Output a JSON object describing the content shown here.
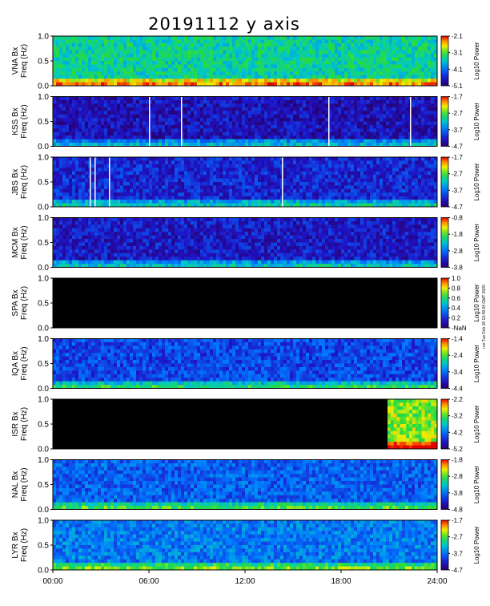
{
  "title": "20191112 y axis",
  "side_note": "run Tue Feb 18 13:49:34 GMT 2020",
  "chart_data": {
    "type": "heatmap",
    "title": "20191112 y axis",
    "xlabel": "",
    "x_range_hours": [
      0,
      24
    ],
    "x_ticks": [
      "00:00",
      "06:00",
      "12:00",
      "18:00",
      "24:00"
    ],
    "ylim": [
      0.0,
      1.0
    ],
    "y_ticks": [
      "0.0",
      "0.5",
      "1.0"
    ],
    "colorbar_label": "Log10 Power",
    "panels": [
      {
        "station": "VNA Bx",
        "ylabel": "Freq (Hz)",
        "ylabel1": "VNA Bx",
        "cb_ticks": [
          "-2.1",
          "-3.1",
          "-4.1",
          "-5.1"
        ],
        "cb_range": [
          -5.1,
          -2.1
        ],
        "data_coverage_hours": [
          0,
          24
        ],
        "level": 0.55,
        "gaps_hours": []
      },
      {
        "station": "KSS Bx",
        "ylabel": "Freq (Hz)",
        "ylabel1": "KSS Bx",
        "cb_ticks": [
          "-1.7",
          "-2.7",
          "-3.7",
          "-4.7"
        ],
        "cb_range": [
          -4.7,
          -1.7
        ],
        "data_coverage_hours": [
          0,
          24
        ],
        "level": 0.12,
        "gaps_hours": [
          6.0,
          8.0,
          17.2,
          22.3
        ]
      },
      {
        "station": "JBS Bx",
        "ylabel": "Freq (Hz)",
        "ylabel1": "JBS Bx",
        "cb_ticks": [
          "-1.7",
          "-2.7",
          "-3.7",
          "-4.7"
        ],
        "cb_range": [
          -4.7,
          -1.7
        ],
        "data_coverage_hours": [
          0,
          24
        ],
        "level": 0.18,
        "gaps_hours": [
          2.3,
          2.6,
          3.5,
          14.3
        ]
      },
      {
        "station": "MCM Bx",
        "ylabel": "Freq (Hz)",
        "ylabel1": "MCM Bx",
        "cb_ticks": [
          "-0.8",
          "-1.8",
          "-2.8",
          "-3.8"
        ],
        "cb_range": [
          -3.8,
          -0.8
        ],
        "data_coverage_hours": [
          0,
          24
        ],
        "level": 0.15,
        "gaps_hours": []
      },
      {
        "station": "SPA Bx",
        "ylabel": "Freq (Hz)",
        "ylabel1": "SPA Bx",
        "cb_ticks": [
          "1.0",
          "0.8",
          "0.6",
          "0.4",
          "0.2",
          "-NaN"
        ],
        "cb_range": [
          0,
          1
        ],
        "data_coverage_hours": [],
        "level": 0,
        "gaps_hours": []
      },
      {
        "station": "IQA Bx",
        "ylabel": "Freq (Hz)",
        "ylabel1": "IQA Bx",
        "cb_ticks": [
          "-1.4",
          "-2.4",
          "-3.4",
          "-4.4"
        ],
        "cb_range": [
          -4.4,
          -1.4
        ],
        "data_coverage_hours": [
          0,
          24
        ],
        "level": 0.25,
        "gaps_hours": []
      },
      {
        "station": "ISR Bx",
        "ylabel": "Freq (Hz)",
        "ylabel1": "ISR Bx",
        "cb_ticks": [
          "-2.2",
          "-3.2",
          "-4.2",
          "-5.2"
        ],
        "cb_range": [
          -5.2,
          -2.2
        ],
        "data_coverage_hours": [
          20.9,
          24
        ],
        "level": 0.72,
        "gaps_hours": []
      },
      {
        "station": "NAL Bx",
        "ylabel": "Freq (Hz)",
        "ylabel1": "NAL Bx",
        "cb_ticks": [
          "-1.8",
          "-2.8",
          "-3.8",
          "-4.8"
        ],
        "cb_range": [
          -4.8,
          -1.8
        ],
        "data_coverage_hours": [
          0,
          24
        ],
        "level": 0.3,
        "gaps_hours": []
      },
      {
        "station": "LYR Bx",
        "ylabel": "Freq (Hz)",
        "ylabel1": "LYR Bx",
        "cb_ticks": [
          "-1.7",
          "-2.7",
          "-3.7",
          "-4.7"
        ],
        "cb_range": [
          -4.7,
          -1.7
        ],
        "data_coverage_hours": [
          0,
          24
        ],
        "level": 0.35,
        "gaps_hours": []
      }
    ]
  }
}
